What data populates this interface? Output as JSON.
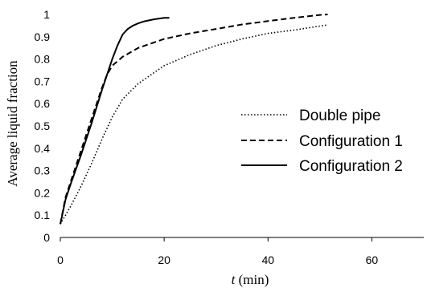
{
  "chart_data": {
    "type": "line",
    "title": "",
    "xlabel_italic": "t",
    "xlabel_rest": " (min)",
    "ylabel": "Average liquid fraction",
    "xlim": [
      0,
      70
    ],
    "ylim": [
      0,
      1
    ],
    "x_ticks": [
      0,
      20,
      40,
      60
    ],
    "y_ticks": [
      0,
      0.1,
      0.2,
      0.3,
      0.4,
      0.5,
      0.6,
      0.7,
      0.8,
      0.9,
      1
    ],
    "grid": false,
    "legend_position": "right",
    "series": [
      {
        "name": "Double pipe",
        "style": "dotted",
        "x": [
          0,
          1,
          2,
          4,
          6,
          8,
          10,
          12,
          15,
          20,
          25,
          30,
          35,
          40,
          45,
          50,
          51.5
        ],
        "y": [
          0.06,
          0.1,
          0.14,
          0.23,
          0.33,
          0.44,
          0.54,
          0.62,
          0.69,
          0.77,
          0.82,
          0.86,
          0.89,
          0.915,
          0.93,
          0.948,
          0.953
        ]
      },
      {
        "name": "Configuration 1",
        "style": "dashed",
        "x": [
          0,
          1,
          2,
          4,
          6,
          8,
          9,
          10,
          12,
          15,
          20,
          25,
          30,
          35,
          40,
          45,
          50,
          51.5
        ],
        "y": [
          0.06,
          0.18,
          0.25,
          0.39,
          0.53,
          0.67,
          0.73,
          0.77,
          0.81,
          0.85,
          0.89,
          0.915,
          0.935,
          0.955,
          0.97,
          0.985,
          0.998,
          1.0
        ]
      },
      {
        "name": "Configuration 2",
        "style": "solid",
        "x": [
          0,
          1,
          2,
          4,
          6,
          8,
          10,
          11,
          12,
          13,
          14,
          15,
          16,
          18,
          20,
          21
        ],
        "y": [
          0.06,
          0.17,
          0.24,
          0.37,
          0.51,
          0.66,
          0.8,
          0.86,
          0.91,
          0.935,
          0.95,
          0.96,
          0.968,
          0.978,
          0.985,
          0.985
        ]
      }
    ]
  }
}
